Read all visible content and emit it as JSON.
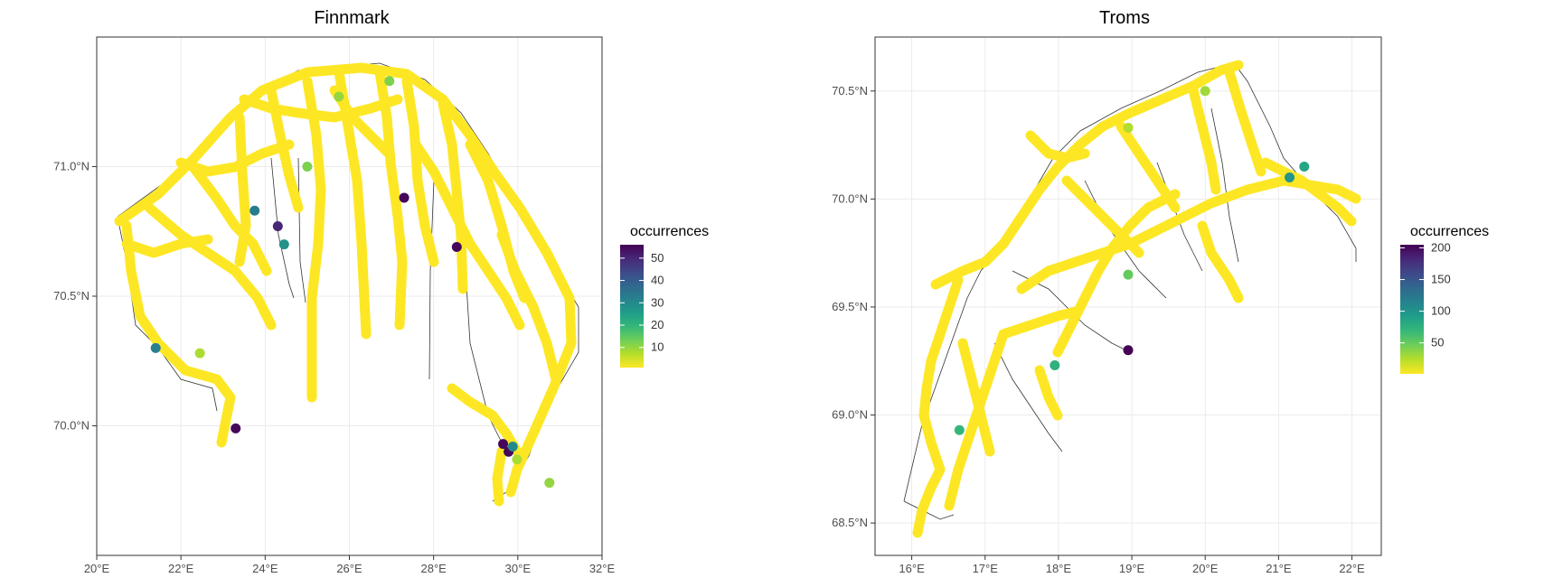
{
  "maps": [
    {
      "id": "finnmark",
      "title": "Finnmark",
      "lon_range": [
        20,
        32
      ],
      "lat_range": [
        69.5,
        71.5
      ],
      "x_ticks": [
        20,
        22,
        24,
        26,
        28,
        30,
        32
      ],
      "x_tick_labels": [
        "20°E",
        "22°E",
        "24°E",
        "26°E",
        "28°E",
        "30°E",
        "32°E"
      ],
      "y_ticks": [
        70.0,
        70.5,
        71.0
      ],
      "y_tick_labels": [
        "70.0°N",
        "70.5°N",
        "71.0°N"
      ],
      "grid": true,
      "legend": {
        "title": "occurrences",
        "breaks": [
          10,
          20,
          30,
          40,
          50
        ],
        "break_labels": [
          "10",
          "20",
          "30",
          "40",
          "50"
        ],
        "domain": [
          1,
          56
        ],
        "palette": "viridis-reversed"
      },
      "point_value_default": 1,
      "highlight_points": [
        {
          "lon": 27.3,
          "lat": 70.88,
          "value": 55
        },
        {
          "lon": 28.55,
          "lat": 70.69,
          "value": 55
        },
        {
          "lon": 24.3,
          "lat": 70.77,
          "value": 50
        },
        {
          "lon": 23.3,
          "lat": 69.99,
          "value": 55
        },
        {
          "lon": 29.65,
          "lat": 69.93,
          "value": 55
        },
        {
          "lon": 29.78,
          "lat": 69.9,
          "value": 55
        },
        {
          "lon": 29.88,
          "lat": 69.92,
          "value": 30
        },
        {
          "lon": 23.75,
          "lat": 70.83,
          "value": 33
        },
        {
          "lon": 24.45,
          "lat": 70.7,
          "value": 28
        },
        {
          "lon": 21.4,
          "lat": 70.3,
          "value": 32
        },
        {
          "lon": 25.0,
          "lat": 71.0,
          "value": 12
        },
        {
          "lon": 26.95,
          "lat": 71.33,
          "value": 12
        },
        {
          "lon": 25.75,
          "lat": 71.27,
          "value": 10
        },
        {
          "lon": 22.45,
          "lat": 70.28,
          "value": 8
        },
        {
          "lon": 29.98,
          "lat": 69.87,
          "value": 8
        },
        {
          "lon": 30.75,
          "lat": 69.78,
          "value": 10
        }
      ]
    },
    {
      "id": "troms",
      "title": "Troms",
      "lon_range": [
        15.5,
        22.4
      ],
      "lat_range": [
        68.35,
        70.75
      ],
      "x_ticks": [
        16,
        17,
        18,
        19,
        20,
        21,
        22
      ],
      "x_tick_labels": [
        "16°E",
        "17°E",
        "18°E",
        "19°E",
        "20°E",
        "21°E",
        "22°E"
      ],
      "y_ticks": [
        68.5,
        69.0,
        69.5,
        70.0,
        70.5
      ],
      "y_tick_labels": [
        "68.5°N",
        "69.0°N",
        "69.5°N",
        "70.0°N",
        "70.5°N"
      ],
      "grid": true,
      "legend": {
        "title": "occurrences",
        "breaks": [
          50,
          100,
          150,
          200
        ],
        "break_labels": [
          "50",
          "100",
          "150",
          "200"
        ],
        "domain": [
          1,
          205
        ],
        "palette": "viridis-reversed"
      },
      "point_value_default": 1,
      "highlight_points": [
        {
          "lon": 18.95,
          "lat": 69.3,
          "value": 205
        },
        {
          "lon": 21.15,
          "lat": 70.1,
          "value": 100
        },
        {
          "lon": 21.35,
          "lat": 70.15,
          "value": 85
        },
        {
          "lon": 17.95,
          "lat": 69.23,
          "value": 75
        },
        {
          "lon": 16.65,
          "lat": 68.93,
          "value": 70
        },
        {
          "lon": 18.95,
          "lat": 69.65,
          "value": 50
        },
        {
          "lon": 20.0,
          "lat": 70.5,
          "value": 30
        },
        {
          "lon": 18.95,
          "lat": 70.33,
          "value": 25
        }
      ]
    }
  ]
}
